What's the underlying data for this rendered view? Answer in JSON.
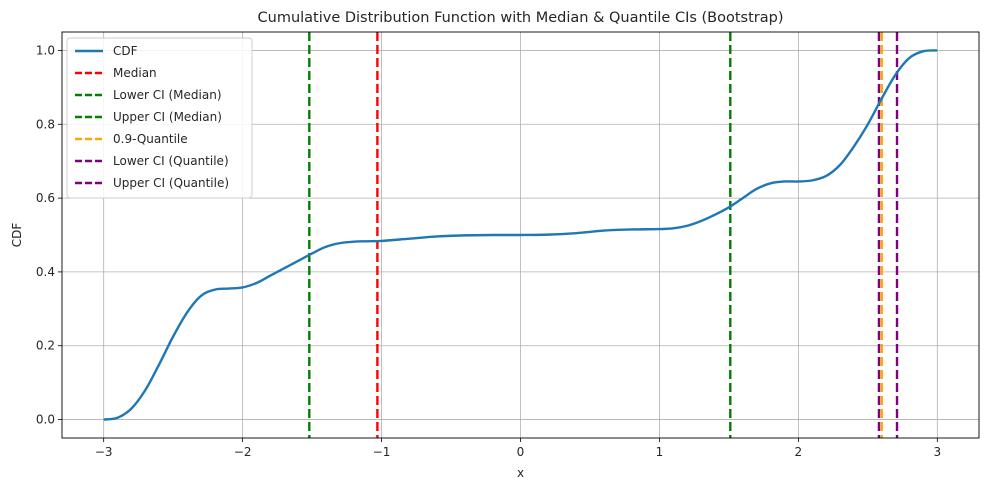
{
  "chart_data": {
    "type": "line",
    "title": "Cumulative Distribution Function with Median & Quantile CIs (Bootstrap)",
    "xlabel": "x",
    "ylabel": "CDF",
    "xlim": [
      -3.3,
      3.3
    ],
    "ylim": [
      -0.05,
      1.05
    ],
    "xticks": [
      -3,
      -2,
      -1,
      0,
      1,
      2,
      3
    ],
    "xtick_labels": [
      "−3",
      "−2",
      "−1",
      "0",
      "1",
      "2",
      "3"
    ],
    "yticks": [
      0.0,
      0.2,
      0.4,
      0.6,
      0.8,
      1.0
    ],
    "ytick_labels": [
      "0.0",
      "0.2",
      "0.4",
      "0.6",
      "0.8",
      "1.0"
    ],
    "grid": true,
    "legend_position": "top-left",
    "series": [
      {
        "name": "CDF",
        "color": "#1f77b4",
        "style": "solid",
        "x": [
          -3.0,
          -2.9,
          -2.8,
          -2.7,
          -2.6,
          -2.5,
          -2.4,
          -2.3,
          -2.2,
          -2.1,
          -2.0,
          -1.9,
          -1.8,
          -1.7,
          -1.6,
          -1.5,
          -1.4,
          -1.3,
          -1.2,
          -1.1,
          -1.0,
          -0.8,
          -0.6,
          -0.4,
          -0.2,
          0.0,
          0.2,
          0.4,
          0.6,
          0.8,
          1.0,
          1.1,
          1.2,
          1.3,
          1.4,
          1.5,
          1.6,
          1.7,
          1.8,
          1.9,
          2.0,
          2.1,
          2.2,
          2.3,
          2.4,
          2.5,
          2.6,
          2.7,
          2.8,
          2.9,
          3.0
        ],
        "y": [
          0.0,
          0.005,
          0.03,
          0.08,
          0.15,
          0.225,
          0.29,
          0.335,
          0.352,
          0.355,
          0.358,
          0.37,
          0.39,
          0.41,
          0.43,
          0.45,
          0.468,
          0.478,
          0.482,
          0.483,
          0.484,
          0.49,
          0.496,
          0.499,
          0.5,
          0.5,
          0.501,
          0.505,
          0.512,
          0.515,
          0.516,
          0.518,
          0.525,
          0.538,
          0.555,
          0.575,
          0.6,
          0.625,
          0.64,
          0.645,
          0.645,
          0.648,
          0.66,
          0.69,
          0.74,
          0.8,
          0.87,
          0.935,
          0.98,
          0.998,
          1.0
        ]
      }
    ],
    "vlines": [
      {
        "name": "Median",
        "x": -1.03,
        "color": "#ff0000"
      },
      {
        "name": "Lower CI (Median)",
        "x": -1.52,
        "color": "#008000"
      },
      {
        "name": "Upper CI (Median)",
        "x": 1.51,
        "color": "#008000"
      },
      {
        "name": "0.9-Quantile",
        "x": 2.6,
        "color": "#ffa500"
      },
      {
        "name": "Lower CI (Quantile)",
        "x": 2.58,
        "color": "#800080"
      },
      {
        "name": "Upper CI (Quantile)",
        "x": 2.71,
        "color": "#800080"
      }
    ]
  }
}
